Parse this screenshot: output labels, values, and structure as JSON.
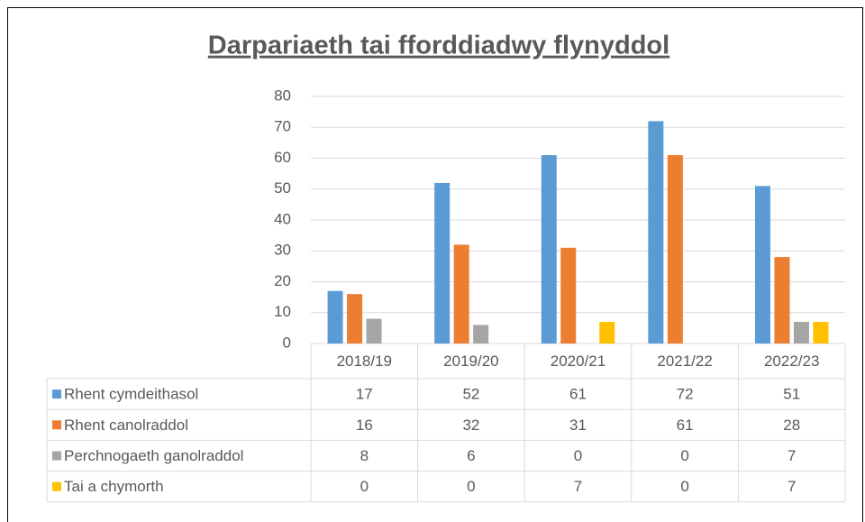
{
  "chart_data": {
    "type": "bar",
    "title": "Darpariaeth tai fforddiadwy flynyddol",
    "categories": [
      "2018/19",
      "2019/20",
      "2020/21",
      "2021/22",
      "2022/23"
    ],
    "series": [
      {
        "name": "Rhent cymdeithasol",
        "color": "#5b9bd5",
        "values": [
          17,
          52,
          61,
          72,
          51
        ]
      },
      {
        "name": "Rhent canolraddol",
        "color": "#ed7d31",
        "values": [
          16,
          32,
          31,
          61,
          28
        ]
      },
      {
        "name": "Perchnogaeth ganolraddol",
        "color": "#a5a5a5",
        "values": [
          8,
          6,
          0,
          0,
          7
        ]
      },
      {
        "name": "Tai a chymorth",
        "color": "#ffc000",
        "values": [
          0,
          0,
          7,
          0,
          7
        ]
      }
    ],
    "ylim": [
      0,
      80
    ],
    "yticks": [
      0,
      10,
      20,
      30,
      40,
      50,
      60,
      70,
      80
    ],
    "grid": true
  }
}
